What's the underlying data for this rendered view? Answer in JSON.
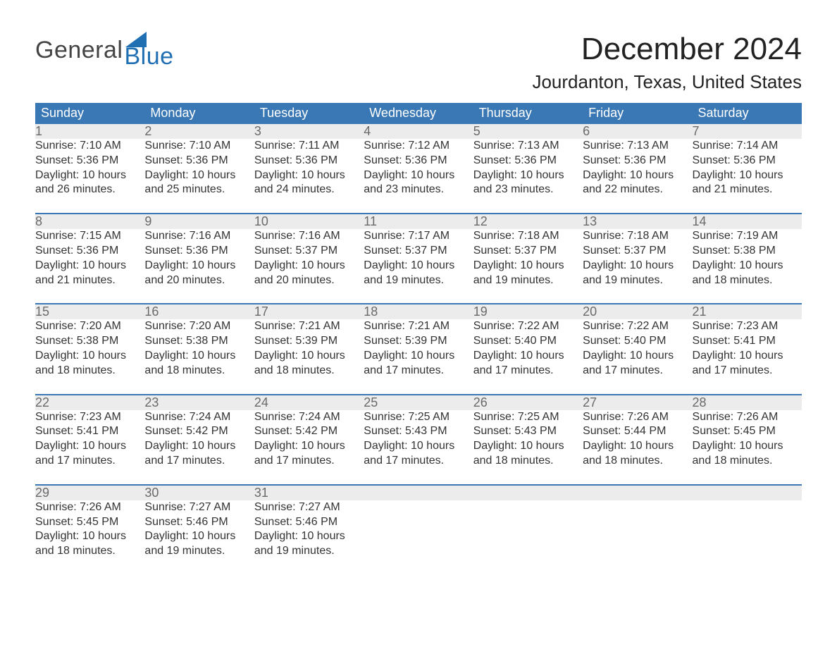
{
  "logo": {
    "general": "General",
    "blue": "Blue",
    "general_color": "#444444",
    "blue_color": "#1f6fb2"
  },
  "title": "December 2024",
  "location": "Jourdanton, Texas, United States",
  "colors": {
    "header_bg": "#3a78b5",
    "header_text": "#ffffff",
    "daynum_bg": "#ececec",
    "daynum_text": "#6a6a6a",
    "body_text": "#333333",
    "row_border": "#3a78b5",
    "page_bg": "#ffffff"
  },
  "weekdays": [
    "Sunday",
    "Monday",
    "Tuesday",
    "Wednesday",
    "Thursday",
    "Friday",
    "Saturday"
  ],
  "days": [
    {
      "n": "1",
      "sunrise": "Sunrise: 7:10 AM",
      "sunset": "Sunset: 5:36 PM",
      "dl1": "Daylight: 10 hours",
      "dl2": "and 26 minutes."
    },
    {
      "n": "2",
      "sunrise": "Sunrise: 7:10 AM",
      "sunset": "Sunset: 5:36 PM",
      "dl1": "Daylight: 10 hours",
      "dl2": "and 25 minutes."
    },
    {
      "n": "3",
      "sunrise": "Sunrise: 7:11 AM",
      "sunset": "Sunset: 5:36 PM",
      "dl1": "Daylight: 10 hours",
      "dl2": "and 24 minutes."
    },
    {
      "n": "4",
      "sunrise": "Sunrise: 7:12 AM",
      "sunset": "Sunset: 5:36 PM",
      "dl1": "Daylight: 10 hours",
      "dl2": "and 23 minutes."
    },
    {
      "n": "5",
      "sunrise": "Sunrise: 7:13 AM",
      "sunset": "Sunset: 5:36 PM",
      "dl1": "Daylight: 10 hours",
      "dl2": "and 23 minutes."
    },
    {
      "n": "6",
      "sunrise": "Sunrise: 7:13 AM",
      "sunset": "Sunset: 5:36 PM",
      "dl1": "Daylight: 10 hours",
      "dl2": "and 22 minutes."
    },
    {
      "n": "7",
      "sunrise": "Sunrise: 7:14 AM",
      "sunset": "Sunset: 5:36 PM",
      "dl1": "Daylight: 10 hours",
      "dl2": "and 21 minutes."
    },
    {
      "n": "8",
      "sunrise": "Sunrise: 7:15 AM",
      "sunset": "Sunset: 5:36 PM",
      "dl1": "Daylight: 10 hours",
      "dl2": "and 21 minutes."
    },
    {
      "n": "9",
      "sunrise": "Sunrise: 7:16 AM",
      "sunset": "Sunset: 5:36 PM",
      "dl1": "Daylight: 10 hours",
      "dl2": "and 20 minutes."
    },
    {
      "n": "10",
      "sunrise": "Sunrise: 7:16 AM",
      "sunset": "Sunset: 5:37 PM",
      "dl1": "Daylight: 10 hours",
      "dl2": "and 20 minutes."
    },
    {
      "n": "11",
      "sunrise": "Sunrise: 7:17 AM",
      "sunset": "Sunset: 5:37 PM",
      "dl1": "Daylight: 10 hours",
      "dl2": "and 19 minutes."
    },
    {
      "n": "12",
      "sunrise": "Sunrise: 7:18 AM",
      "sunset": "Sunset: 5:37 PM",
      "dl1": "Daylight: 10 hours",
      "dl2": "and 19 minutes."
    },
    {
      "n": "13",
      "sunrise": "Sunrise: 7:18 AM",
      "sunset": "Sunset: 5:37 PM",
      "dl1": "Daylight: 10 hours",
      "dl2": "and 19 minutes."
    },
    {
      "n": "14",
      "sunrise": "Sunrise: 7:19 AM",
      "sunset": "Sunset: 5:38 PM",
      "dl1": "Daylight: 10 hours",
      "dl2": "and 18 minutes."
    },
    {
      "n": "15",
      "sunrise": "Sunrise: 7:20 AM",
      "sunset": "Sunset: 5:38 PM",
      "dl1": "Daylight: 10 hours",
      "dl2": "and 18 minutes."
    },
    {
      "n": "16",
      "sunrise": "Sunrise: 7:20 AM",
      "sunset": "Sunset: 5:38 PM",
      "dl1": "Daylight: 10 hours",
      "dl2": "and 18 minutes."
    },
    {
      "n": "17",
      "sunrise": "Sunrise: 7:21 AM",
      "sunset": "Sunset: 5:39 PM",
      "dl1": "Daylight: 10 hours",
      "dl2": "and 18 minutes."
    },
    {
      "n": "18",
      "sunrise": "Sunrise: 7:21 AM",
      "sunset": "Sunset: 5:39 PM",
      "dl1": "Daylight: 10 hours",
      "dl2": "and 17 minutes."
    },
    {
      "n": "19",
      "sunrise": "Sunrise: 7:22 AM",
      "sunset": "Sunset: 5:40 PM",
      "dl1": "Daylight: 10 hours",
      "dl2": "and 17 minutes."
    },
    {
      "n": "20",
      "sunrise": "Sunrise: 7:22 AM",
      "sunset": "Sunset: 5:40 PM",
      "dl1": "Daylight: 10 hours",
      "dl2": "and 17 minutes."
    },
    {
      "n": "21",
      "sunrise": "Sunrise: 7:23 AM",
      "sunset": "Sunset: 5:41 PM",
      "dl1": "Daylight: 10 hours",
      "dl2": "and 17 minutes."
    },
    {
      "n": "22",
      "sunrise": "Sunrise: 7:23 AM",
      "sunset": "Sunset: 5:41 PM",
      "dl1": "Daylight: 10 hours",
      "dl2": "and 17 minutes."
    },
    {
      "n": "23",
      "sunrise": "Sunrise: 7:24 AM",
      "sunset": "Sunset: 5:42 PM",
      "dl1": "Daylight: 10 hours",
      "dl2": "and 17 minutes."
    },
    {
      "n": "24",
      "sunrise": "Sunrise: 7:24 AM",
      "sunset": "Sunset: 5:42 PM",
      "dl1": "Daylight: 10 hours",
      "dl2": "and 17 minutes."
    },
    {
      "n": "25",
      "sunrise": "Sunrise: 7:25 AM",
      "sunset": "Sunset: 5:43 PM",
      "dl1": "Daylight: 10 hours",
      "dl2": "and 17 minutes."
    },
    {
      "n": "26",
      "sunrise": "Sunrise: 7:25 AM",
      "sunset": "Sunset: 5:43 PM",
      "dl1": "Daylight: 10 hours",
      "dl2": "and 18 minutes."
    },
    {
      "n": "27",
      "sunrise": "Sunrise: 7:26 AM",
      "sunset": "Sunset: 5:44 PM",
      "dl1": "Daylight: 10 hours",
      "dl2": "and 18 minutes."
    },
    {
      "n": "28",
      "sunrise": "Sunrise: 7:26 AM",
      "sunset": "Sunset: 5:45 PM",
      "dl1": "Daylight: 10 hours",
      "dl2": "and 18 minutes."
    },
    {
      "n": "29",
      "sunrise": "Sunrise: 7:26 AM",
      "sunset": "Sunset: 5:45 PM",
      "dl1": "Daylight: 10 hours",
      "dl2": "and 18 minutes."
    },
    {
      "n": "30",
      "sunrise": "Sunrise: 7:27 AM",
      "sunset": "Sunset: 5:46 PM",
      "dl1": "Daylight: 10 hours",
      "dl2": "and 19 minutes."
    },
    {
      "n": "31",
      "sunrise": "Sunrise: 7:27 AM",
      "sunset": "Sunset: 5:46 PM",
      "dl1": "Daylight: 10 hours",
      "dl2": "and 19 minutes."
    }
  ],
  "layout": {
    "start_weekday": 0,
    "weeks": 5,
    "total_cells": 35
  }
}
